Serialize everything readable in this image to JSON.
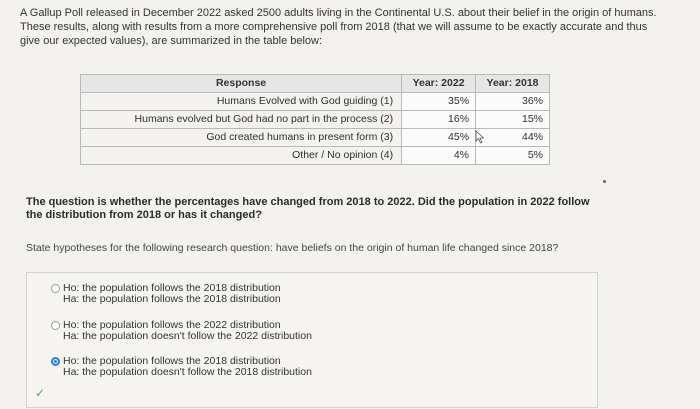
{
  "intro": "A Gallup Poll released in December 2022 asked 2500 adults living in the Continental U.S. about their belief in the origin of humans. These results, along with results from a more comprehensive poll from 2018 (that we will assume to be exactly accurate and thus give our expected values), are summarized in the table below:",
  "table": {
    "headers": [
      "Response",
      "Year: 2022",
      "Year: 2018"
    ],
    "rows": [
      [
        "Humans Evolved with God guiding (1)",
        "35%",
        "36%"
      ],
      [
        "Humans evolved but God had no part in the process (2)",
        "16%",
        "15%"
      ],
      [
        "God created humans in present form (3)",
        "45%",
        "44%"
      ],
      [
        "Other / No opinion (4)",
        "4%",
        "5%"
      ]
    ]
  },
  "question": "The question is whether the percentages have changed from 2018 to 2022. Did the population in 2022 follow the distribution from 2018 or has it changed?",
  "instruction": "State hypotheses for the following research question: have beliefs on the origin of human life changed since 2018?",
  "options": [
    {
      "h0": "Ho: the population follows the 2018 distribution",
      "ha": "Ha: the population follows the 2018 distribution",
      "selected": false
    },
    {
      "h0": "Ho: the population follows the 2022 distribution",
      "ha": "Ha: the population doesn't follow the 2022 distribution",
      "selected": false
    },
    {
      "h0": "Ho: the population follows the 2018 distribution",
      "ha": "Ha: the population doesn't follow the 2018 distribution",
      "selected": true
    }
  ],
  "icons": {
    "checkmark": "check-icon",
    "cursor": "mouse-cursor-icon",
    "accent_color": "#2b7de9",
    "check_color": "#5aa64a"
  }
}
